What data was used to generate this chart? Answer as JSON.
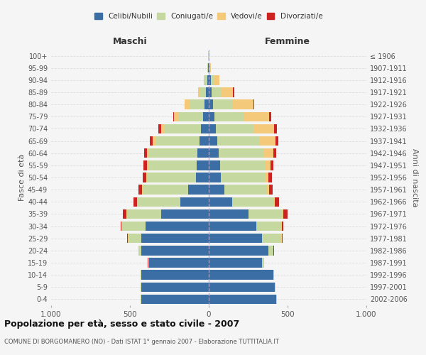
{
  "age_groups": [
    "0-4",
    "5-9",
    "10-14",
    "15-19",
    "20-24",
    "25-29",
    "30-34",
    "35-39",
    "40-44",
    "45-49",
    "50-54",
    "55-59",
    "60-64",
    "65-69",
    "70-74",
    "75-79",
    "80-84",
    "85-89",
    "90-94",
    "95-99",
    "100+"
  ],
  "birth_years": [
    "2002-2006",
    "1997-2001",
    "1992-1996",
    "1987-1991",
    "1982-1986",
    "1977-1981",
    "1972-1976",
    "1967-1971",
    "1962-1966",
    "1957-1961",
    "1952-1956",
    "1947-1951",
    "1942-1946",
    "1937-1941",
    "1932-1936",
    "1927-1931",
    "1922-1926",
    "1917-1921",
    "1912-1916",
    "1907-1911",
    "≤ 1906"
  ],
  "males": {
    "celibi": [
      430,
      430,
      430,
      380,
      430,
      430,
      400,
      300,
      180,
      130,
      80,
      75,
      70,
      60,
      50,
      35,
      25,
      18,
      10,
      4,
      2
    ],
    "coniugati": [
      2,
      2,
      3,
      5,
      15,
      80,
      150,
      220,
      270,
      290,
      310,
      310,
      310,
      280,
      230,
      160,
      90,
      35,
      15,
      3,
      1
    ],
    "vedovi": [
      0,
      0,
      0,
      0,
      1,
      2,
      2,
      3,
      4,
      5,
      6,
      8,
      12,
      15,
      20,
      25,
      40,
      15,
      5,
      1,
      0
    ],
    "divorziati": [
      0,
      0,
      0,
      1,
      2,
      5,
      5,
      22,
      22,
      20,
      22,
      20,
      18,
      18,
      20,
      5,
      0,
      0,
      0,
      0,
      0
    ]
  },
  "females": {
    "nubili": [
      430,
      420,
      410,
      340,
      380,
      340,
      300,
      250,
      150,
      100,
      75,
      70,
      65,
      55,
      45,
      35,
      25,
      20,
      12,
      5,
      2
    ],
    "coniugate": [
      2,
      2,
      3,
      10,
      30,
      120,
      160,
      220,
      260,
      270,
      285,
      290,
      285,
      270,
      240,
      190,
      130,
      55,
      20,
      5,
      1
    ],
    "vedove": [
      0,
      0,
      0,
      0,
      1,
      2,
      3,
      5,
      8,
      12,
      20,
      30,
      60,
      100,
      130,
      160,
      130,
      80,
      35,
      5,
      0
    ],
    "divorziate": [
      0,
      0,
      0,
      1,
      2,
      5,
      12,
      25,
      30,
      25,
      20,
      20,
      18,
      18,
      18,
      10,
      5,
      5,
      2,
      0,
      0
    ]
  },
  "colors": {
    "celibi_nubili": "#3a6ea5",
    "coniugati": "#c5d8a0",
    "vedovi": "#f5c97a",
    "divorziati": "#cc2222"
  },
  "xlim": 1000,
  "title": "Popolazione per età, sesso e stato civile - 2007",
  "subtitle": "COMUNE DI BORGOMANERO (NO) - Dati ISTAT 1° gennaio 2007 - Elaborazione TUTTITALIA.IT",
  "ylabel_left": "Fasce di età",
  "ylabel_right": "Anni di nascita",
  "xlabel_left": "Maschi",
  "xlabel_right": "Femmine",
  "background_color": "#f5f5f5",
  "grid_color": "#dddddd"
}
